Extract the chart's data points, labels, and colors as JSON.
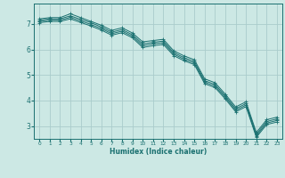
{
  "xlabel": "Humidex (Indice chaleur)",
  "ylabel": "",
  "background_color": "#cce8e4",
  "grid_color": "#aacccc",
  "line_color": "#1a7070",
  "xlim": [
    -0.5,
    23.5
  ],
  "ylim": [
    2.5,
    7.8
  ],
  "xticks": [
    0,
    1,
    2,
    3,
    4,
    5,
    6,
    7,
    8,
    9,
    10,
    11,
    12,
    13,
    14,
    15,
    16,
    17,
    18,
    19,
    20,
    21,
    22,
    23
  ],
  "yticks": [
    3,
    4,
    5,
    6,
    7
  ],
  "series": [
    {
      "x": [
        0,
        1,
        2,
        3,
        4,
        5,
        6,
        7,
        8,
        9,
        10,
        11,
        12,
        13,
        14,
        15,
        16,
        17,
        18,
        19,
        20,
        21,
        22,
        23
      ],
      "y": [
        7.2,
        7.25,
        7.25,
        7.4,
        7.25,
        7.1,
        6.95,
        6.75,
        6.85,
        6.65,
        6.3,
        6.35,
        6.4,
        5.95,
        5.75,
        5.6,
        4.85,
        4.7,
        4.25,
        3.75,
        3.95,
        2.75,
        3.25,
        3.35
      ]
    },
    {
      "x": [
        0,
        1,
        2,
        3,
        4,
        5,
        6,
        7,
        8,
        9,
        10,
        11,
        12,
        13,
        14,
        15,
        16,
        17,
        18,
        19,
        20,
        21,
        22,
        23
      ],
      "y": [
        7.15,
        7.2,
        7.2,
        7.32,
        7.18,
        7.05,
        6.88,
        6.68,
        6.78,
        6.58,
        6.22,
        6.28,
        6.33,
        5.88,
        5.68,
        5.53,
        4.78,
        4.63,
        4.18,
        3.68,
        3.88,
        2.68,
        3.18,
        3.28
      ]
    },
    {
      "x": [
        0,
        1,
        2,
        3,
        4,
        5,
        6,
        7,
        8,
        9,
        10,
        11,
        12,
        13,
        14,
        15,
        16,
        17,
        18,
        19,
        20,
        21,
        22,
        23
      ],
      "y": [
        7.1,
        7.15,
        7.15,
        7.26,
        7.12,
        6.98,
        6.82,
        6.62,
        6.72,
        6.52,
        6.15,
        6.22,
        6.27,
        5.82,
        5.62,
        5.47,
        4.72,
        4.57,
        4.12,
        3.62,
        3.82,
        2.62,
        3.12,
        3.22
      ]
    },
    {
      "x": [
        0,
        1,
        2,
        3,
        4,
        5,
        6,
        7,
        8,
        9,
        10,
        11,
        12,
        13,
        14,
        15,
        16,
        17,
        18,
        19,
        20,
        21,
        22,
        23
      ],
      "y": [
        7.05,
        7.1,
        7.1,
        7.2,
        7.06,
        6.92,
        6.76,
        6.56,
        6.66,
        6.46,
        6.08,
        6.15,
        6.2,
        5.76,
        5.56,
        5.41,
        4.66,
        4.51,
        4.06,
        3.56,
        3.76,
        2.56,
        3.06,
        3.16
      ]
    }
  ]
}
